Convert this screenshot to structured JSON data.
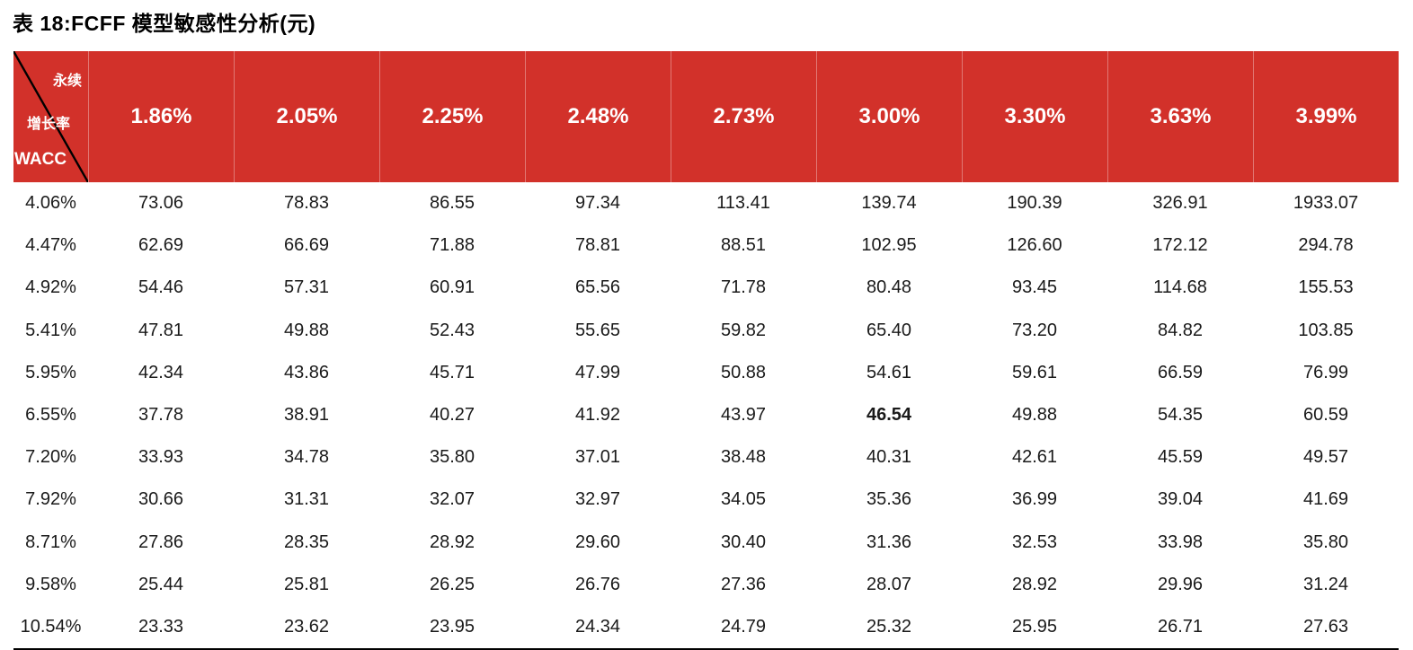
{
  "page": {
    "title": "表 18:FCFF 模型敏感性分析(元)"
  },
  "colors": {
    "header_bg": "#d2312a",
    "header_text": "#ffffff",
    "body_text": "#1a1a1a",
    "border": "#000000"
  },
  "table": {
    "corner": {
      "top_label": "永续",
      "mid_label": "增长率",
      "bottom_label": "WACC"
    },
    "columns": [
      "1.86%",
      "2.05%",
      "2.25%",
      "2.48%",
      "2.73%",
      "3.00%",
      "3.30%",
      "3.63%",
      "3.99%"
    ],
    "rows": [
      {
        "wacc": "4.06%",
        "values": [
          "73.06",
          "78.83",
          "86.55",
          "97.34",
          "113.41",
          "139.74",
          "190.39",
          "326.91",
          "1933.07"
        ]
      },
      {
        "wacc": "4.47%",
        "values": [
          "62.69",
          "66.69",
          "71.88",
          "78.81",
          "88.51",
          "102.95",
          "126.60",
          "172.12",
          "294.78"
        ]
      },
      {
        "wacc": "4.92%",
        "values": [
          "54.46",
          "57.31",
          "60.91",
          "65.56",
          "71.78",
          "80.48",
          "93.45",
          "114.68",
          "155.53"
        ]
      },
      {
        "wacc": "5.41%",
        "values": [
          "47.81",
          "49.88",
          "52.43",
          "55.65",
          "59.82",
          "65.40",
          "73.20",
          "84.82",
          "103.85"
        ]
      },
      {
        "wacc": "5.95%",
        "values": [
          "42.34",
          "43.86",
          "45.71",
          "47.99",
          "50.88",
          "54.61",
          "59.61",
          "66.59",
          "76.99"
        ]
      },
      {
        "wacc": "6.55%",
        "values": [
          "37.78",
          "38.91",
          "40.27",
          "41.92",
          "43.97",
          "46.54",
          "49.88",
          "54.35",
          "60.59"
        ]
      },
      {
        "wacc": "7.20%",
        "values": [
          "33.93",
          "34.78",
          "35.80",
          "37.01",
          "38.48",
          "40.31",
          "42.61",
          "45.59",
          "49.57"
        ]
      },
      {
        "wacc": "7.92%",
        "values": [
          "30.66",
          "31.31",
          "32.07",
          "32.97",
          "34.05",
          "35.36",
          "36.99",
          "39.04",
          "41.69"
        ]
      },
      {
        "wacc": "8.71%",
        "values": [
          "27.86",
          "28.35",
          "28.92",
          "29.60",
          "30.40",
          "31.36",
          "32.53",
          "33.98",
          "35.80"
        ]
      },
      {
        "wacc": "9.58%",
        "values": [
          "25.44",
          "25.81",
          "26.25",
          "26.76",
          "27.36",
          "28.07",
          "28.92",
          "29.96",
          "31.24"
        ]
      },
      {
        "wacc": "10.54%",
        "values": [
          "23.33",
          "23.62",
          "23.95",
          "24.34",
          "24.79",
          "25.32",
          "25.95",
          "26.71",
          "27.63"
        ]
      }
    ],
    "highlight_cell": {
      "row_index": 5,
      "col_index": 5
    }
  }
}
